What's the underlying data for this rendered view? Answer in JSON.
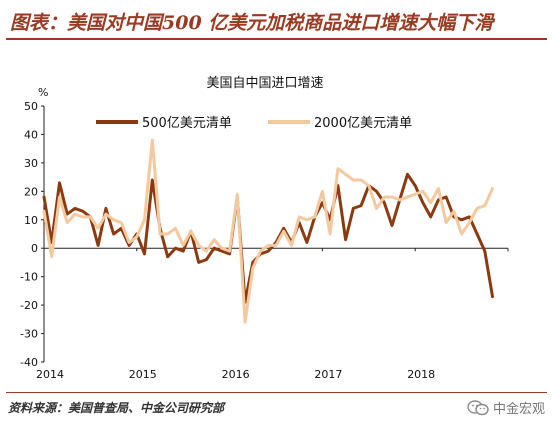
{
  "header": {
    "title": "图表：美国对中国500 亿美元加税商品进口增速大幅下滑"
  },
  "footer": {
    "source": "资料来源：美国普查局、中金公司研究部"
  },
  "watermark": {
    "text": "中金宏观",
    "icon": "wechat-icon"
  },
  "colors": {
    "accent": "#9b3a22",
    "series_dark": "#8b3a10",
    "series_light": "#f5c9a0"
  },
  "chart_data": {
    "type": "line",
    "title": "美国自中国进口增速",
    "ylabel": "%",
    "ylim": [
      -40,
      50
    ],
    "yticks": [
      -40,
      -30,
      -20,
      -10,
      0,
      10,
      20,
      30,
      40,
      50
    ],
    "xticks": [
      "2014",
      "2015",
      "2016",
      "2017",
      "2018"
    ],
    "xrange": [
      "2014-01",
      "2018-12"
    ],
    "grid": false,
    "legend": "top",
    "x": [
      "2014-01",
      "2014-02",
      "2014-03",
      "2014-04",
      "2014-05",
      "2014-06",
      "2014-07",
      "2014-08",
      "2014-09",
      "2014-10",
      "2014-11",
      "2014-12",
      "2015-01",
      "2015-02",
      "2015-03",
      "2015-04",
      "2015-05",
      "2015-06",
      "2015-07",
      "2015-08",
      "2015-09",
      "2015-10",
      "2015-11",
      "2015-12",
      "2016-01",
      "2016-02",
      "2016-03",
      "2016-04",
      "2016-05",
      "2016-06",
      "2016-07",
      "2016-08",
      "2016-09",
      "2016-10",
      "2016-11",
      "2016-12",
      "2017-01",
      "2017-02",
      "2017-03",
      "2017-04",
      "2017-05",
      "2017-06",
      "2017-07",
      "2017-08",
      "2017-09",
      "2017-10",
      "2017-11",
      "2017-12",
      "2018-01",
      "2018-02",
      "2018-03",
      "2018-04",
      "2018-05",
      "2018-06",
      "2018-07",
      "2018-08",
      "2018-09",
      "2018-10",
      "2018-11"
    ],
    "series": [
      {
        "name": "500亿美元清单",
        "color": "#8b3a10",
        "values": [
          18,
          2,
          23,
          12,
          14,
          13,
          11,
          1,
          14,
          5,
          7,
          1,
          5,
          -2,
          24,
          7,
          -3,
          0,
          -1,
          6,
          -5,
          -4,
          0,
          -1,
          -2,
          18,
          -19,
          -5,
          -2,
          -1,
          2,
          7,
          2,
          9,
          2,
          11,
          16,
          10,
          22,
          3,
          14,
          15,
          22,
          20,
          16,
          8,
          17,
          26,
          22,
          16,
          11,
          17,
          18,
          11,
          10,
          11,
          5,
          -1,
          -17
        ]
      },
      {
        "name": "2000亿美元清单",
        "color": "#f5c9a0",
        "values": [
          13,
          -3,
          18,
          9,
          12,
          11,
          11,
          7,
          12,
          10,
          9,
          2,
          4,
          10,
          38,
          5,
          5,
          7,
          1,
          6,
          1,
          -1,
          3,
          0,
          -1,
          19,
          -26,
          -7,
          -1,
          1,
          1,
          6,
          1,
          11,
          10,
          11,
          20,
          5,
          28,
          26,
          24,
          24,
          22,
          14,
          18,
          18,
          17,
          18,
          19,
          20,
          16,
          21,
          9,
          13,
          5,
          9,
          14,
          15,
          21
        ]
      }
    ]
  }
}
